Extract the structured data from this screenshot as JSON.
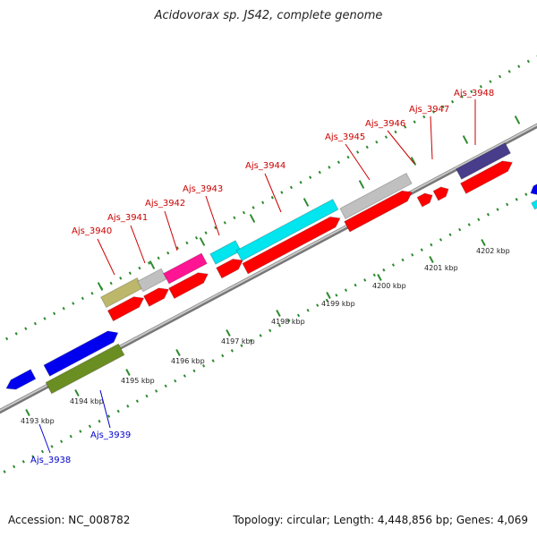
{
  "title": "Acidovorax sp. JS42, complete genome",
  "footer": {
    "accession": "Accession: NC_008782",
    "summary": "Topology: circular; Length: 4,448,856 bp; Genes: 4,069"
  },
  "ticks": [
    "4193 kbp",
    "4194 kbp",
    "4195 kbp",
    "4196 kbp",
    "4197 kbp",
    "4198 kbp",
    "4199 kbp",
    "4200 kbp",
    "4201 kbp",
    "4202 kbp"
  ],
  "gene_labels": [
    {
      "id": "Ajs_3938",
      "color": "#0000cc"
    },
    {
      "id": "Ajs_3939",
      "color": "#0000cc"
    },
    {
      "id": "Ajs_3940",
      "color": "#cc0000"
    },
    {
      "id": "Ajs_3941",
      "color": "#cc0000"
    },
    {
      "id": "Ajs_3942",
      "color": "#cc0000"
    },
    {
      "id": "Ajs_3943",
      "color": "#cc0000"
    },
    {
      "id": "Ajs_3944",
      "color": "#cc0000"
    },
    {
      "id": "Ajs_3945",
      "color": "#cc0000"
    },
    {
      "id": "Ajs_3946",
      "color": "#cc0000"
    },
    {
      "id": "Ajs_3947",
      "color": "#cc0000"
    },
    {
      "id": "Ajs_3948",
      "color": "#cc0000"
    }
  ],
  "colors": {
    "cds_red": "#ff0000",
    "cds_blue": "#0000ee",
    "olive": "#6b8e23",
    "khaki": "#bdb76b",
    "grey": "#c0c0c0",
    "magenta": "#ff1493",
    "cyan": "#00e5ee",
    "slate": "#483d8b",
    "tick_green": "#2e8b2e",
    "backbone": "#999999"
  }
}
